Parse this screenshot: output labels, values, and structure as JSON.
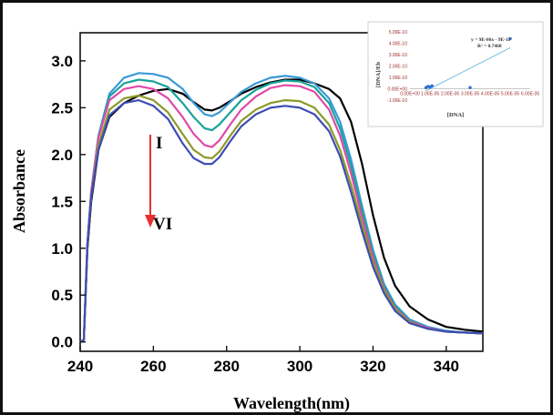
{
  "chart_data": [
    {
      "type": "line",
      "xlabel": "Wavelength(nm)",
      "ylabel": "Absorbance",
      "xlim": [
        240,
        350
      ],
      "ylim": [
        -0.1,
        3.3
      ],
      "xticks": [
        "240",
        "260",
        "280",
        "300",
        "320",
        "340"
      ],
      "yticks": [
        "0.0",
        "0.5",
        "1.0",
        "1.5",
        "2.0",
        "2.5",
        "3.0"
      ],
      "grid": false,
      "annotation": {
        "start_label": "I",
        "end_label": "VI",
        "arrow_color": "#e8312f"
      },
      "x": [
        240,
        241,
        242,
        243,
        245,
        248,
        252,
        256,
        260,
        264,
        268,
        271,
        274,
        276,
        278,
        281,
        284,
        288,
        292,
        296,
        300,
        304,
        308,
        311,
        314,
        317,
        320,
        323,
        326,
        330,
        335,
        340,
        345,
        350
      ],
      "series": [
        {
          "color": "#000000",
          "values": [
            0.0,
            0.02,
            1.0,
            1.5,
            2.05,
            2.4,
            2.55,
            2.63,
            2.68,
            2.7,
            2.65,
            2.56,
            2.48,
            2.47,
            2.5,
            2.57,
            2.65,
            2.72,
            2.77,
            2.8,
            2.8,
            2.76,
            2.7,
            2.6,
            2.35,
            1.9,
            1.35,
            0.9,
            0.6,
            0.38,
            0.24,
            0.16,
            0.13,
            0.11
          ]
        },
        {
          "color": "#3a9ad8",
          "values": [
            0.0,
            0.02,
            1.05,
            1.6,
            2.2,
            2.65,
            2.82,
            2.87,
            2.86,
            2.82,
            2.7,
            2.55,
            2.43,
            2.41,
            2.45,
            2.56,
            2.67,
            2.76,
            2.82,
            2.84,
            2.82,
            2.76,
            2.6,
            2.35,
            1.95,
            1.45,
            0.98,
            0.62,
            0.4,
            0.24,
            0.16,
            0.12,
            0.1,
            0.09
          ]
        },
        {
          "color": "#1aa39a",
          "values": [
            0.0,
            0.02,
            1.05,
            1.6,
            2.2,
            2.62,
            2.76,
            2.8,
            2.78,
            2.72,
            2.55,
            2.4,
            2.28,
            2.26,
            2.32,
            2.45,
            2.58,
            2.69,
            2.76,
            2.79,
            2.78,
            2.72,
            2.55,
            2.28,
            1.88,
            1.4,
            0.95,
            0.6,
            0.38,
            0.23,
            0.15,
            0.11,
            0.1,
            0.09
          ]
        },
        {
          "color": "#e04aa8",
          "values": [
            0.0,
            0.02,
            1.05,
            1.6,
            2.18,
            2.58,
            2.7,
            2.73,
            2.7,
            2.6,
            2.4,
            2.22,
            2.1,
            2.08,
            2.15,
            2.32,
            2.48,
            2.62,
            2.71,
            2.74,
            2.73,
            2.67,
            2.48,
            2.2,
            1.8,
            1.33,
            0.9,
            0.57,
            0.36,
            0.22,
            0.15,
            0.11,
            0.1,
            0.09
          ]
        },
        {
          "color": "#8c9a2a",
          "values": [
            0.0,
            0.02,
            1.05,
            1.55,
            2.1,
            2.48,
            2.6,
            2.63,
            2.58,
            2.45,
            2.22,
            2.05,
            1.97,
            1.96,
            2.03,
            2.2,
            2.36,
            2.48,
            2.55,
            2.58,
            2.57,
            2.5,
            2.32,
            2.05,
            1.68,
            1.25,
            0.85,
            0.55,
            0.35,
            0.21,
            0.14,
            0.11,
            0.1,
            0.09
          ]
        },
        {
          "color": "#3d4db3",
          "values": [
            0.0,
            0.02,
            1.05,
            1.55,
            2.05,
            2.42,
            2.55,
            2.58,
            2.52,
            2.38,
            2.12,
            1.96,
            1.9,
            1.9,
            1.97,
            2.14,
            2.3,
            2.43,
            2.5,
            2.52,
            2.5,
            2.43,
            2.25,
            1.98,
            1.6,
            1.18,
            0.8,
            0.52,
            0.33,
            0.2,
            0.14,
            0.11,
            0.1,
            0.09
          ]
        }
      ]
    },
    {
      "type": "scatter",
      "xlabel": "[DNA]",
      "ylabel": "[DNA]/Eb",
      "equation": "y = 9E-06x - 9E-11",
      "r2": "R² = 0.7468",
      "xlim": [
        0,
        6e-05
      ],
      "ylim": [
        -1e-10,
        5e-10
      ],
      "xticks": [
        "0.00E+00",
        "1.00E-05",
        "2.00E-05",
        "3.00E-05",
        "4.00E-05",
        "5.00E-05",
        "6.00E-05"
      ],
      "yticks": [
        "5.00E-10",
        "4.00E-10",
        "3.00E-10",
        "2.00E-10",
        "1.00E-10",
        "0.00E+00",
        "-1.00E-10"
      ],
      "x": [
        8e-06,
        9e-06,
        1e-05,
        1.1e-05,
        3e-05,
        5e-05
      ],
      "y": [
        1e-11,
        2e-11,
        1.5e-11,
        2.5e-11,
        1e-11,
        4.4e-10
      ],
      "trendline": {
        "x": [
          8e-06,
          5e-05
        ],
        "y": [
          -1.8e-11,
          3.6e-10
        ]
      },
      "colors": {
        "points": "#2f6fd0",
        "trend": "#5aaedf"
      }
    }
  ]
}
